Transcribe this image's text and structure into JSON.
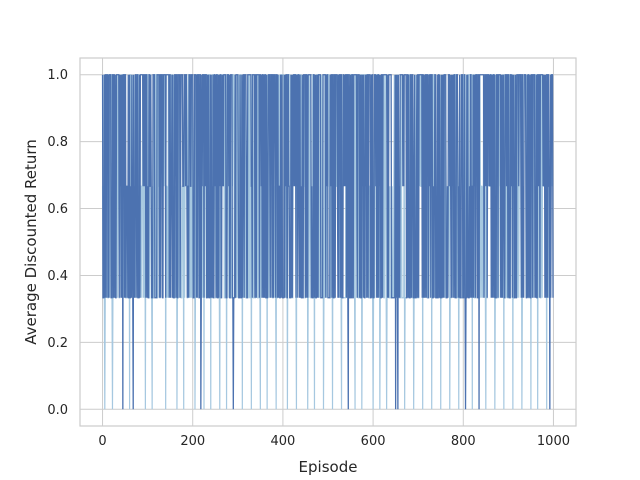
{
  "chart_data": {
    "type": "line",
    "title": "",
    "xlabel": "Episode",
    "ylabel": "Average Discounted Return",
    "xlim": [
      -50,
      1050
    ],
    "ylim": [
      -0.05,
      1.05
    ],
    "x_ticks": [
      0,
      200,
      400,
      600,
      800,
      1000
    ],
    "y_ticks": [
      0.0,
      0.2,
      0.4,
      0.6,
      0.8,
      1.0
    ],
    "x_tick_labels": [
      "0",
      "200",
      "400",
      "600",
      "800",
      "1000"
    ],
    "y_tick_labels": [
      "0.0",
      "0.2",
      "0.4",
      "0.6",
      "0.8",
      "1.0"
    ],
    "grid": true,
    "legend": "none",
    "episodes": [
      0,
      999
    ],
    "series": [
      {
        "style": "dark-line",
        "color": "#4c72b0",
        "value_levels": [
          0.0,
          0.3333,
          0.6667,
          1.0
        ],
        "drops_to_0_at_episodes": [
          45,
          68,
          218,
          290,
          545,
          650,
          655,
          805,
          835,
          992
        ],
        "description": "step-like noisy return oscillating mostly between 0.3333 and 1.0"
      },
      {
        "style": "light-band",
        "color": "#a6c8e0",
        "value_levels": [
          0.0,
          0.3333,
          0.6667,
          1.0
        ],
        "drops_to_0_at_episodes": [
          5,
          22,
          60,
          95,
          110,
          140,
          165,
          180,
          205,
          225,
          240,
          260,
          275,
          310,
          330,
          350,
          365,
          385,
          410,
          430,
          455,
          470,
          490,
          510,
          530,
          560,
          575,
          600,
          615,
          630,
          670,
          690,
          710,
          730,
          750,
          770,
          790,
          820,
          850,
          870,
          890,
          910,
          930,
          950,
          965,
          985
        ]
      }
    ]
  }
}
